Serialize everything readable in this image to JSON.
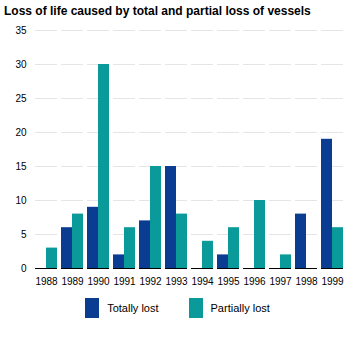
{
  "chart_data": {
    "type": "bar",
    "title": "Loss of life caused by total and partial loss of vessels",
    "categories": [
      "1988",
      "1989",
      "1990",
      "1991",
      "1992",
      "1993",
      "1994",
      "1995",
      "1996",
      "1997",
      "1998",
      "1999"
    ],
    "series": [
      {
        "name": "Totally lost",
        "color": "#0a3d91",
        "values": [
          0,
          6,
          9,
          2,
          7,
          15,
          0,
          2,
          0,
          0,
          8,
          19
        ]
      },
      {
        "name": "Partially lost",
        "color": "#0a9a9a",
        "values": [
          3,
          8,
          30,
          6,
          15,
          8,
          4,
          6,
          10,
          2,
          0,
          6
        ]
      }
    ],
    "ylim": [
      0,
      35
    ],
    "yticks": [
      0,
      5,
      10,
      15,
      20,
      25,
      30,
      35
    ],
    "grid": true,
    "legend": "bottom"
  }
}
